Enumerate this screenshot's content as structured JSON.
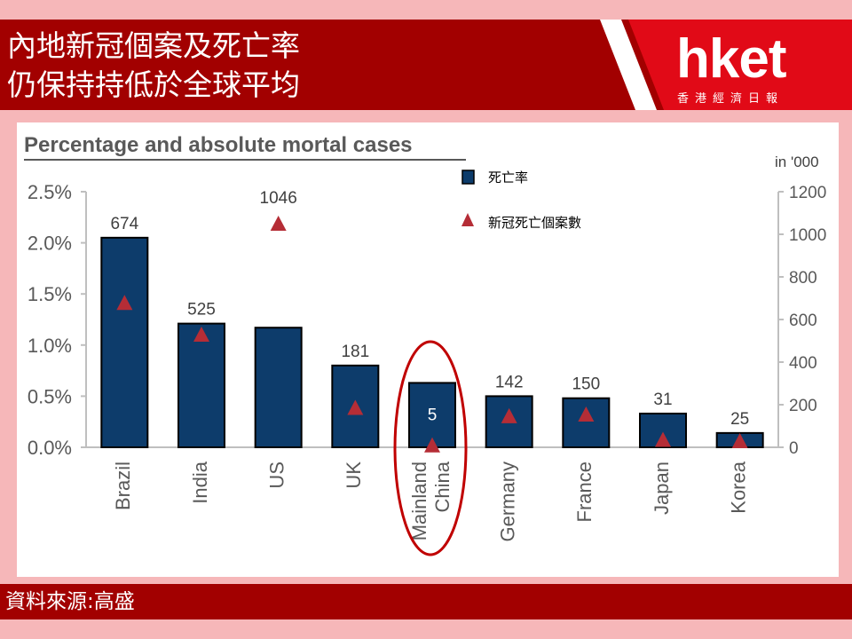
{
  "header": {
    "title_line1": "內地新冠個案及死亡率",
    "title_line2": "仍保持持低於全球平均"
  },
  "brand": {
    "logo": "hket",
    "sub": "香港經濟日報",
    "colors": {
      "banner": "#a20000",
      "background": "#f6b7b9"
    }
  },
  "footer": {
    "source": "資料來源:高盛"
  },
  "chart_data": {
    "type": "bar",
    "title": "Percentage and absolute mortal cases",
    "categories": [
      "Brazil",
      "India",
      "US",
      "UK",
      "Mainland China",
      "Germany",
      "France",
      "Japan",
      "Korea"
    ],
    "category_lines": [
      [
        "Brazil"
      ],
      [
        "India"
      ],
      [
        "US"
      ],
      [
        "UK"
      ],
      [
        "Mainland",
        "China"
      ],
      [
        "Germany"
      ],
      [
        "France"
      ],
      [
        "Japan"
      ],
      [
        "Korea"
      ]
    ],
    "series": [
      {
        "name": "死亡率",
        "type": "bar",
        "axis": "left",
        "values": [
          2.05,
          1.21,
          1.17,
          0.8,
          0.63,
          0.5,
          0.48,
          0.33,
          0.14
        ],
        "color": "#0d3c6b"
      },
      {
        "name": "新冠死亡個案數",
        "type": "scatter",
        "marker": "triangle",
        "axis": "right",
        "values": [
          674,
          525,
          1046,
          181,
          5,
          142,
          150,
          31,
          25
        ],
        "data_labels": [
          "674",
          "525",
          "1046",
          "181",
          "5",
          "142",
          "150",
          "31",
          "25"
        ],
        "color": "#b52d36"
      }
    ],
    "y_left": {
      "ylim": [
        0,
        2.5
      ],
      "ticks": [
        "0.0%",
        "0.5%",
        "1.0%",
        "1.5%",
        "2.0%",
        "2.5%"
      ]
    },
    "y_right": {
      "label": "in '000",
      "ylim": [
        0,
        1200
      ],
      "ticks": [
        "0",
        "200",
        "400",
        "600",
        "800",
        "1000",
        "1200"
      ]
    },
    "grid": false,
    "legend": "top-center",
    "highlight": "Mainland China"
  }
}
